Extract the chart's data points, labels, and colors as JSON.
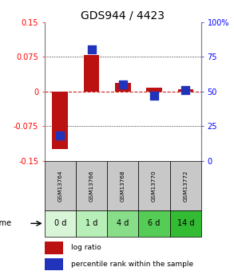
{
  "title": "GDS944 / 4423",
  "samples": [
    "GSM13764",
    "GSM13766",
    "GSM13768",
    "GSM13770",
    "GSM13772"
  ],
  "time_labels": [
    "0 d",
    "1 d",
    "4 d",
    "6 d",
    "14 d"
  ],
  "log_ratio": [
    -0.125,
    0.078,
    0.018,
    0.008,
    0.005
  ],
  "percentile_rank": [
    18,
    80,
    55,
    47,
    51
  ],
  "ylim_left": [
    -0.15,
    0.15
  ],
  "ylim_right": [
    0,
    100
  ],
  "yticks_left": [
    -0.15,
    -0.075,
    0,
    0.075,
    0.15
  ],
  "yticks_left_labels": [
    "-0.15",
    "-0.075",
    "0",
    "0.075",
    "0.15"
  ],
  "yticks_right": [
    0,
    25,
    50,
    75,
    100
  ],
  "yticks_right_labels": [
    "0",
    "25",
    "50",
    "75",
    "100%"
  ],
  "bar_color": "#bb1111",
  "dot_color": "#2233bb",
  "hline_color": "#cc2222",
  "dot_color_grid": "#888888",
  "title_fontsize": 10,
  "tick_fontsize": 7,
  "label_fontsize": 6.5,
  "sample_gray": "#c8c8c8",
  "green_colors": [
    "#d8f5d8",
    "#b8eeb8",
    "#88dd88",
    "#55cc55",
    "#33bb33"
  ],
  "background": "#ffffff",
  "bar_width": 0.5,
  "dot_size": 45
}
